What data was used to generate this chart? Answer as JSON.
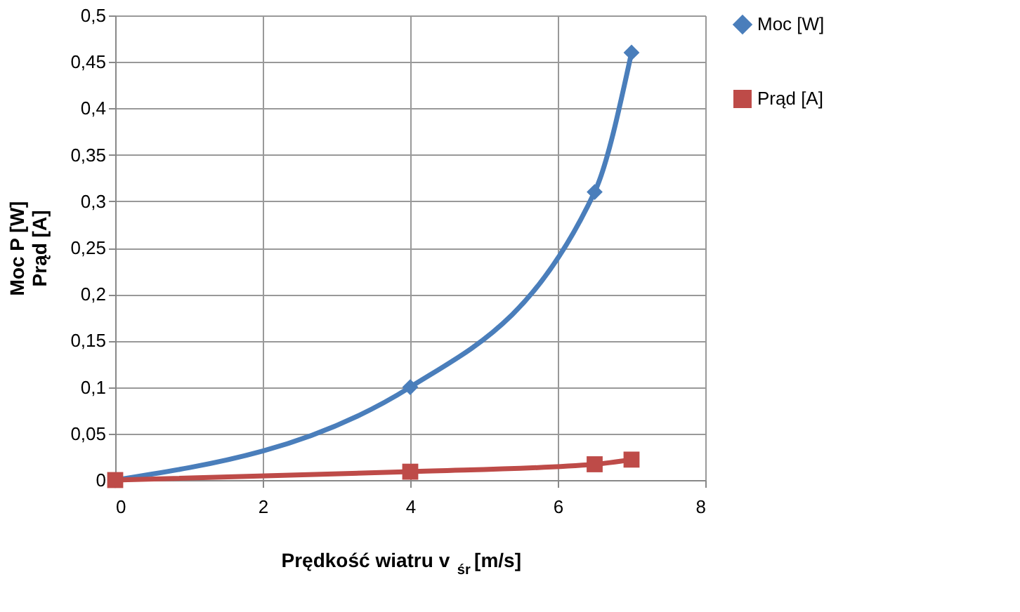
{
  "chart_data": {
    "type": "line",
    "xlabel": "Prędkość wiatru v$_{śr}$ [m/s]",
    "ylabel": "Moc P [W]\nPrąd [A]",
    "x": [
      0,
      4,
      6.5,
      7
    ],
    "series": [
      {
        "name": "Moc [W]",
        "color": "#4a7ebb",
        "marker": "diamond",
        "values": [
          0,
          0.1,
          0.31,
          0.46
        ]
      },
      {
        "name": "Prąd [A]",
        "color": "#be4b48",
        "marker": "square",
        "values": [
          0,
          0.009,
          0.017,
          0.022
        ]
      }
    ],
    "xlim": [
      0,
      8
    ],
    "xticks": [
      0,
      2,
      4,
      6,
      8
    ],
    "ylim": [
      0,
      0.5
    ],
    "yticks": [
      0,
      {
        "value": 0.05,
        "label": "0,05"
      },
      {
        "value": 0.1,
        "label": "0,1"
      },
      {
        "value": 0.15,
        "label": "0,15"
      },
      {
        "value": 0.2,
        "label": "0,2"
      },
      {
        "value": 0.25,
        "label": "0,25"
      },
      {
        "value": 0.3,
        "label": "0,3"
      },
      {
        "value": 0.35,
        "label": "0,35"
      },
      {
        "value": 0.4,
        "label": "0,4"
      },
      {
        "value": 0.45,
        "label": "0,45"
      },
      {
        "value": 0.5,
        "label": "0,5"
      }
    ],
    "grid": true,
    "legend": "right",
    "line_style": "solid"
  }
}
